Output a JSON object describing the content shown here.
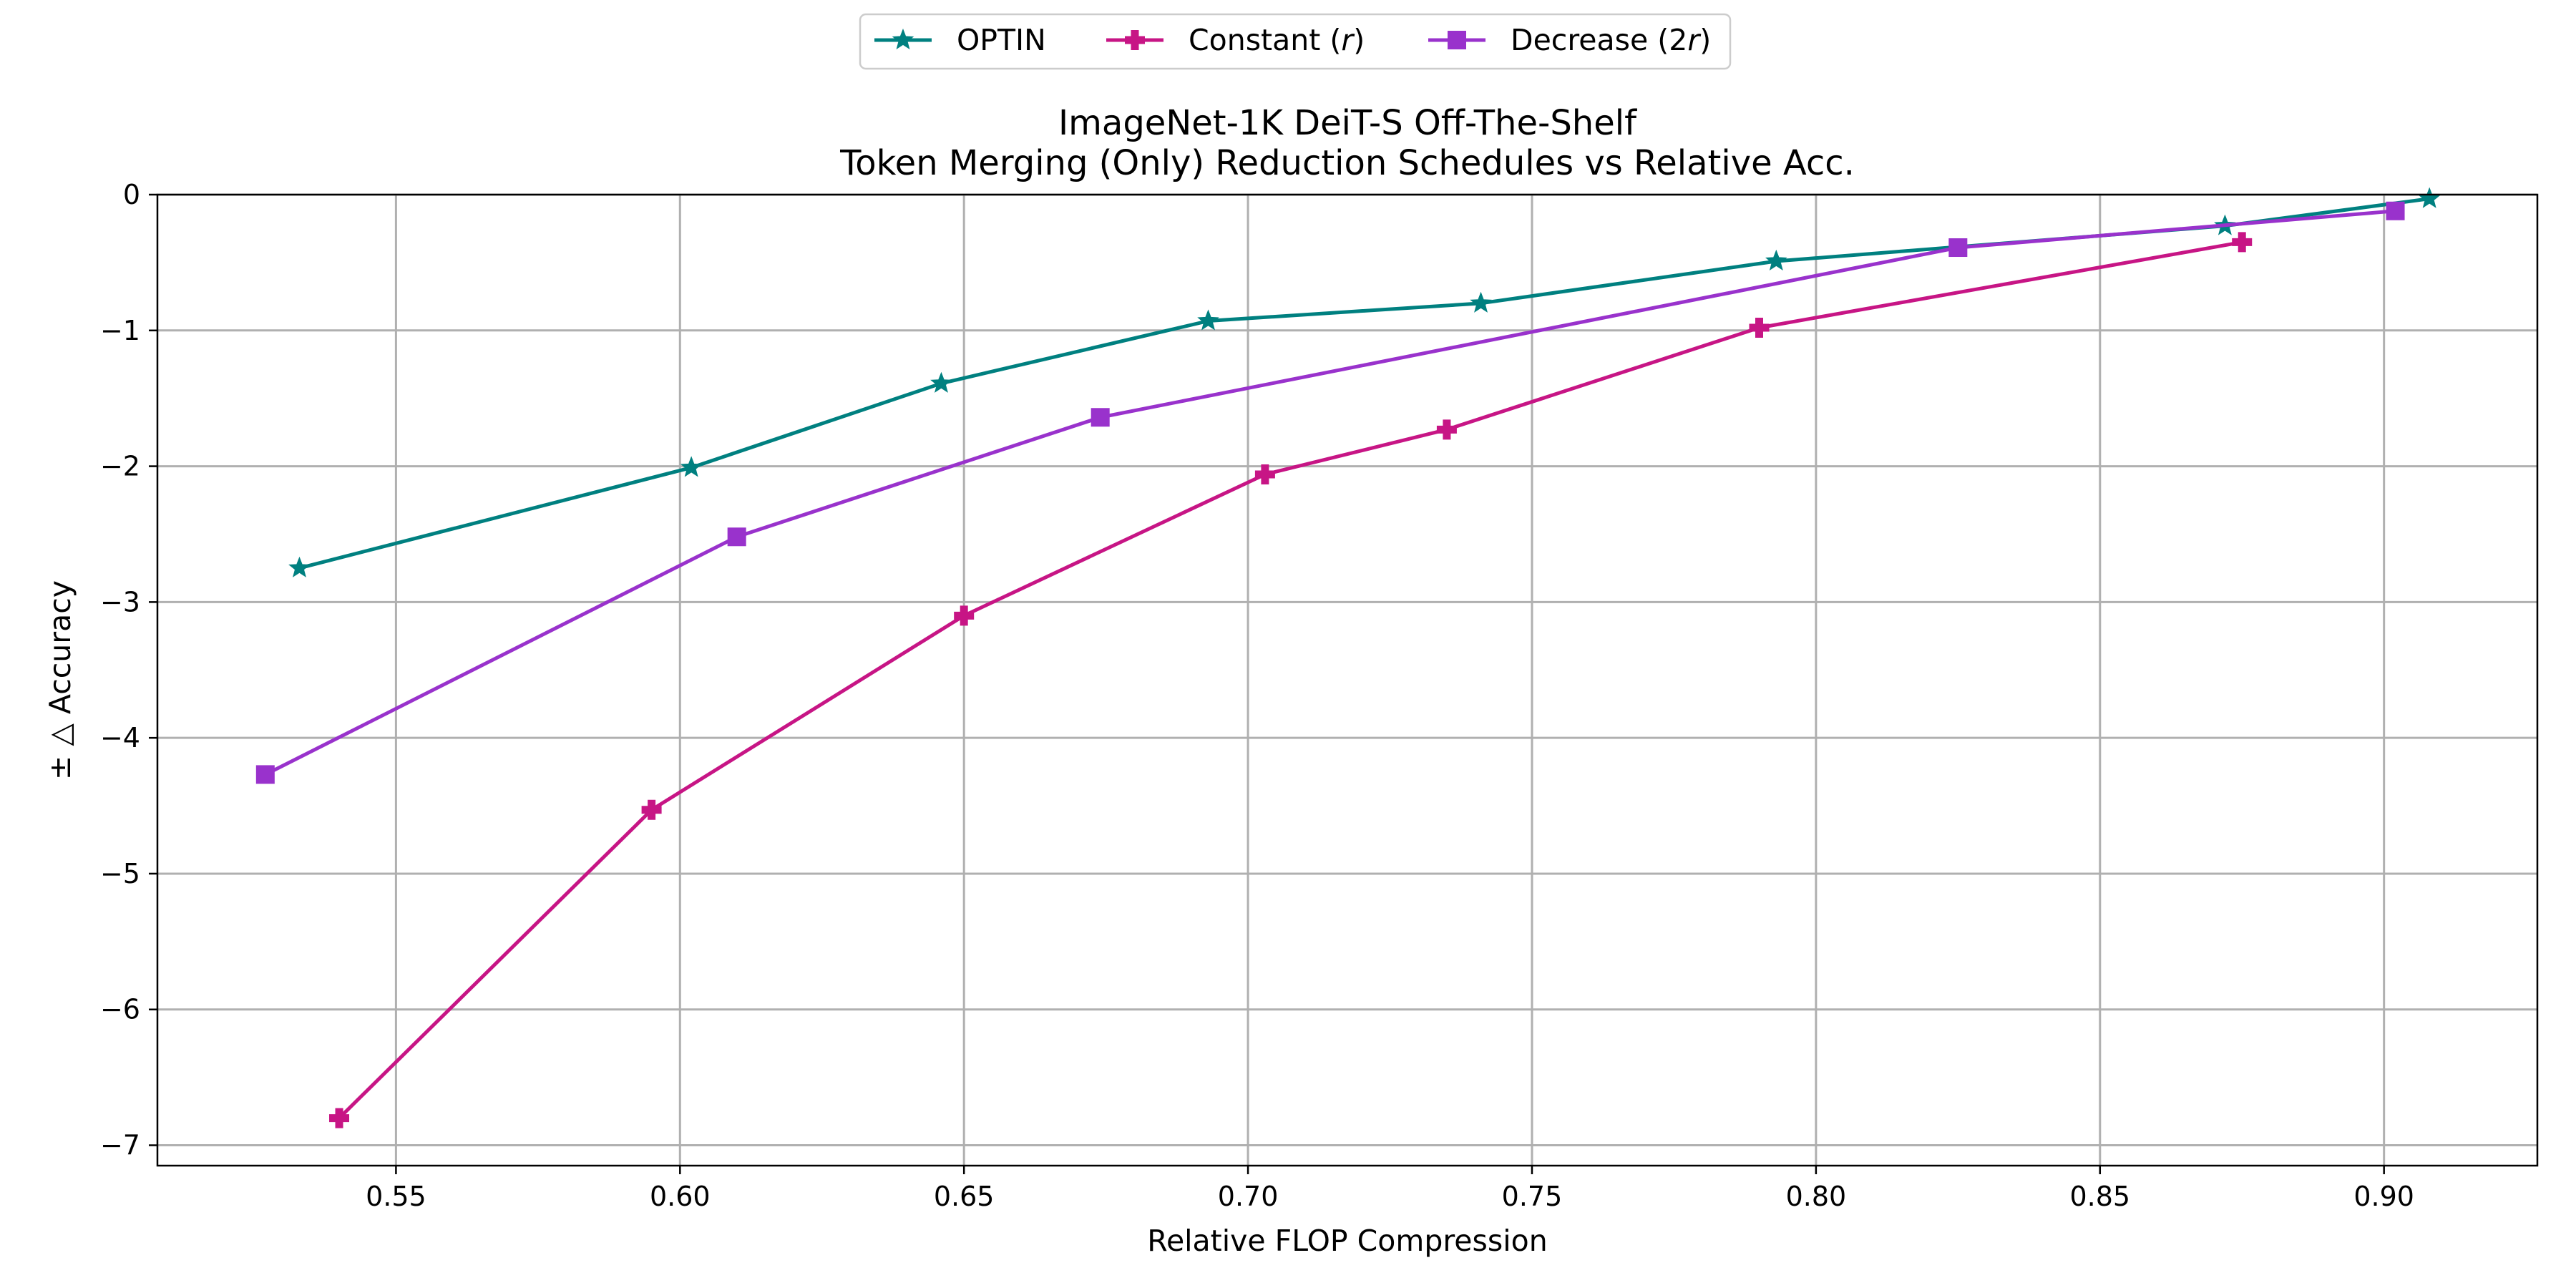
{
  "chart_data": {
    "type": "line",
    "title": "ImageNet-1K DeiT-S Off-The-Shelf",
    "subtitle": "Token Merging (Only) Reduction Schedules vs Relative Acc.",
    "xlabel": "Relative FLOP Compression",
    "ylabel": "± △  Accuracy",
    "xlim": [
      0.508,
      0.927
    ],
    "ylim": [
      -7.15,
      0
    ],
    "xticks": [
      0.55,
      0.6,
      0.65,
      0.7,
      0.75,
      0.8,
      0.85,
      0.9
    ],
    "xtick_labels": [
      "0.55",
      "0.60",
      "0.65",
      "0.70",
      "0.75",
      "0.80",
      "0.85",
      "0.90"
    ],
    "yticks": [
      0,
      -1,
      -2,
      -3,
      -4,
      -5,
      -6,
      -7
    ],
    "ytick_labels": [
      "0",
      "−1",
      "−2",
      "−3",
      "−4",
      "−5",
      "−6",
      "−7"
    ],
    "grid": true,
    "legend_position": "top-center",
    "series": [
      {
        "name": "OPTIN",
        "color": "#008080",
        "marker": "star",
        "x": [
          0.533,
          0.602,
          0.646,
          0.693,
          0.741,
          0.793,
          0.872,
          0.908
        ],
        "y": [
          -2.75,
          -2.01,
          -1.39,
          -0.93,
          -0.8,
          -0.49,
          -0.23,
          -0.03
        ]
      },
      {
        "name": "Constant (r)",
        "name_parts": [
          "Constant (",
          "r",
          ")"
        ],
        "color": "#c71585",
        "marker": "plus",
        "x": [
          0.54,
          0.595,
          0.65,
          0.703,
          0.735,
          0.79,
          0.875
        ],
        "y": [
          -6.8,
          -4.53,
          -3.1,
          -2.06,
          -1.73,
          -0.98,
          -0.35
        ]
      },
      {
        "name": "Decrease (2r)",
        "name_parts": [
          "Decrease (2",
          "r",
          ")"
        ],
        "color": "#9932cc",
        "marker": "square",
        "x": [
          0.527,
          0.61,
          0.674,
          0.825,
          0.902
        ],
        "y": [
          -4.27,
          -2.52,
          -1.64,
          -0.39,
          -0.12
        ]
      }
    ]
  }
}
